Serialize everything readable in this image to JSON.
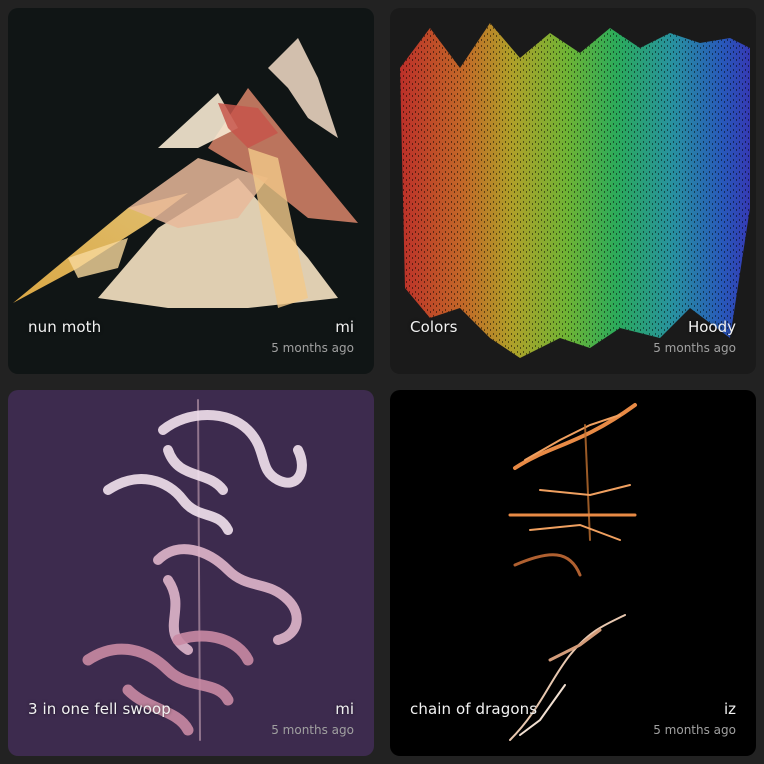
{
  "gallery": {
    "cards": [
      {
        "title": "nun moth",
        "author": "mi",
        "time": "5 months ago",
        "bg": "#101515",
        "art": "fractal-flame-moth"
      },
      {
        "title": "Colors",
        "author": "Hoody",
        "time": "5 months ago",
        "bg": "#1a1a1a",
        "art": "rainbow-flame-streaks"
      },
      {
        "title": "3 in one fell swoop",
        "author": "mi",
        "time": "5 months ago",
        "bg": "#3d2b4e",
        "art": "dragon-curve-pink"
      },
      {
        "title": "chain of dragons",
        "author": "iz",
        "time": "5 months ago",
        "bg": "#000000",
        "art": "dragon-chain-orange"
      }
    ]
  }
}
